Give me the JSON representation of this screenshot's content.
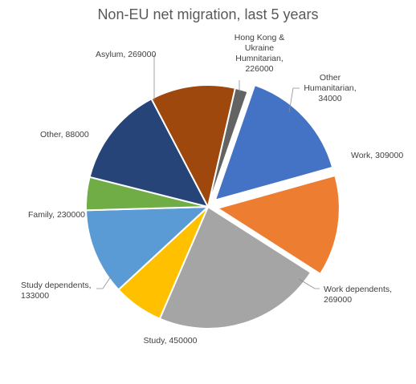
{
  "chart_data": {
    "type": "pie",
    "title": "Non-EU net migration, last 5 years",
    "slices": [
      {
        "name": "Work",
        "value": 309000,
        "label_lines": [
          "Work, 309000"
        ],
        "color": "#4472c4",
        "exploded": true
      },
      {
        "name": "Work dependents",
        "value": 269000,
        "label_lines": [
          "Work dependents,",
          "269000"
        ],
        "color": "#ed7d31",
        "exploded": true
      },
      {
        "name": "Study",
        "value": 450000,
        "label_lines": [
          "Study, 450000"
        ],
        "color": "#a5a5a5",
        "exploded": false
      },
      {
        "name": "Study dependents",
        "value": 133000,
        "label_lines": [
          "Study dependents,",
          "133000"
        ],
        "color": "#ffc000",
        "exploded": false
      },
      {
        "name": "Family",
        "value": 230000,
        "label_lines": [
          "Family, 230000"
        ],
        "color": "#5b9bd5",
        "exploded": false
      },
      {
        "name": "Other",
        "value": 88000,
        "label_lines": [
          "Other, 88000"
        ],
        "color": "#70ad47",
        "exploded": false
      },
      {
        "name": "Asylum",
        "value": 269000,
        "label_lines": [
          "Asylum, 269000"
        ],
        "color": "#264478",
        "exploded": false
      },
      {
        "name": "Hong Kong & Ukraine Humnitarian",
        "value": 226000,
        "label_lines": [
          "Hong Kong &",
          "Ukraine",
          "Humnitarian,",
          "226000"
        ],
        "color": "#9e480e",
        "exploded": false
      },
      {
        "name": "Other Humanitarian",
        "value": 34000,
        "label_lines": [
          "Other",
          "Humanitarian,",
          "34000"
        ],
        "color": "#636363",
        "exploded": false
      }
    ],
    "legend": "none"
  }
}
